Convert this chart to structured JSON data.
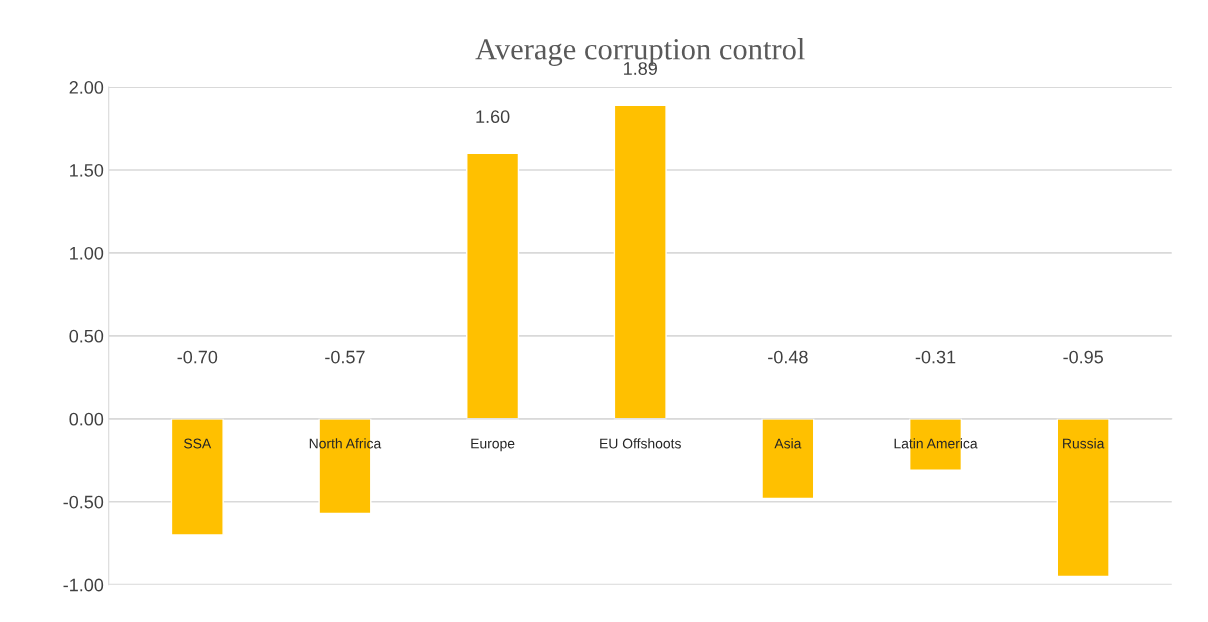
{
  "chart_data": {
    "type": "bar",
    "title": "Average corruption control",
    "categories": [
      "SSA",
      "North Africa",
      "Europe",
      "EU Offshoots",
      "Asia",
      "Latin America",
      "Russia"
    ],
    "values": [
      -0.7,
      -0.57,
      1.6,
      1.89,
      -0.48,
      -0.31,
      -0.95
    ],
    "value_labels": [
      "-0.70",
      "-0.57",
      "1.60",
      "1.89",
      "-0.48",
      "-0.31",
      "-0.95"
    ],
    "color": "#ffc000",
    "ylim": [
      -1.0,
      2.0
    ],
    "yticks": [
      {
        "value": -1.0,
        "label": "-1.00"
      },
      {
        "value": -0.5,
        "label": "-0.50"
      },
      {
        "value": 0.0,
        "label": "0.00"
      },
      {
        "value": 0.5,
        "label": "0.50"
      },
      {
        "value": 1.0,
        "label": "1.00"
      },
      {
        "value": 1.5,
        "label": "1.50"
      },
      {
        "value": 2.0,
        "label": "2.00"
      }
    ],
    "grid": "y"
  }
}
